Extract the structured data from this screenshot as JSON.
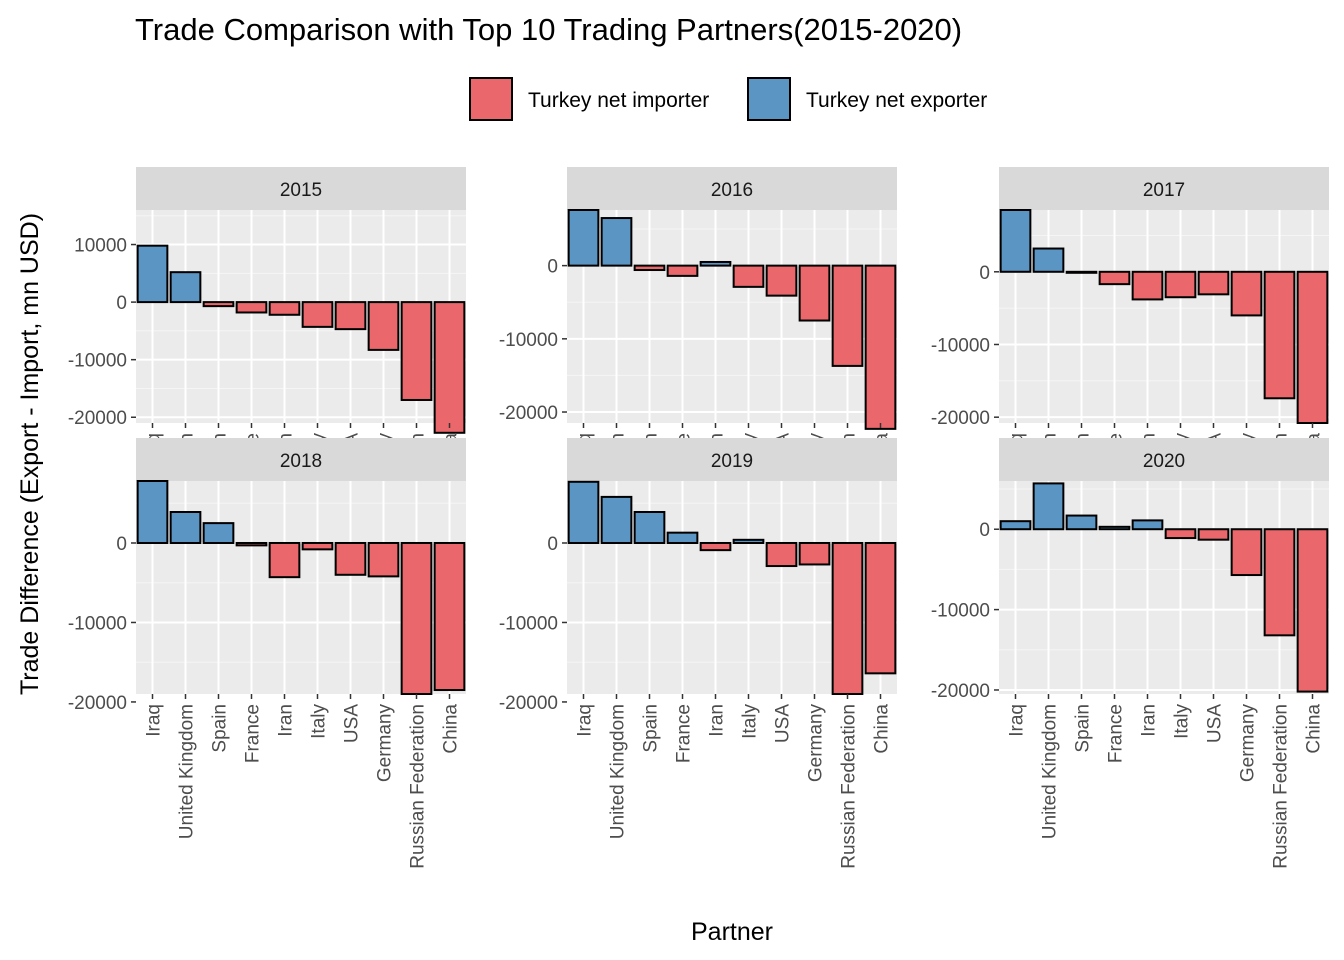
{
  "chart_data": {
    "type": "bar",
    "title": "Trade Comparison with Top 10 Trading Partners(2015-2020)",
    "xlabel": "Partner",
    "ylabel": "Trade Difference (Export - Import, mn USD)",
    "legend_position": "top",
    "legend": [
      {
        "label": "Turkey net importer",
        "color": "#EA686B"
      },
      {
        "label": "Turkey net exporter",
        "color": "#5A95C4"
      }
    ],
    "categories": [
      "Iraq",
      "United Kingdom",
      "Spain",
      "France",
      "Iran",
      "Italy",
      "USA",
      "Germany",
      "Russian Federation",
      "China"
    ],
    "grid": true,
    "facets": [
      {
        "label": "2015",
        "values": [
          9800,
          5200,
          -700,
          -1800,
          -2200,
          -4300,
          -4700,
          -8300,
          -17000,
          -22700
        ],
        "ylim": [
          -21000,
          16000
        ],
        "ticks": [
          -20000,
          -10000,
          0,
          10000
        ]
      },
      {
        "label": "2016",
        "values": [
          7600,
          6500,
          -600,
          -1400,
          500,
          -2900,
          -4100,
          -7500,
          -13700,
          -22300
        ],
        "ylim": [
          -21500,
          7600
        ],
        "ticks": [
          -20000,
          -10000,
          0
        ]
      },
      {
        "label": "2017",
        "values": [
          8500,
          3200,
          -100,
          -1700,
          -3800,
          -3500,
          -3100,
          -6000,
          -17400,
          -20800
        ],
        "ylim": [
          -20800,
          8500
        ],
        "ticks": [
          -20000,
          -10000,
          0
        ]
      },
      {
        "label": "2018",
        "values": [
          7800,
          3900,
          2500,
          -300,
          -4300,
          -800,
          -4000,
          -4200,
          -19000,
          -18500
        ],
        "ylim": [
          -19000,
          7800
        ],
        "ticks": [
          -20000,
          -10000,
          0
        ]
      },
      {
        "label": "2019",
        "values": [
          7700,
          5800,
          3900,
          1300,
          -900,
          400,
          -2900,
          -2700,
          -19000,
          -16400
        ],
        "ylim": [
          -19000,
          7800
        ],
        "ticks": [
          -20000,
          -10000,
          0
        ]
      },
      {
        "label": "2020",
        "values": [
          1000,
          5700,
          1700,
          300,
          1100,
          -1100,
          -1300,
          -5700,
          -13200,
          -20200
        ],
        "ylim": [
          -20500,
          6000
        ],
        "ticks": [
          -20000,
          -10000,
          0
        ]
      }
    ]
  }
}
